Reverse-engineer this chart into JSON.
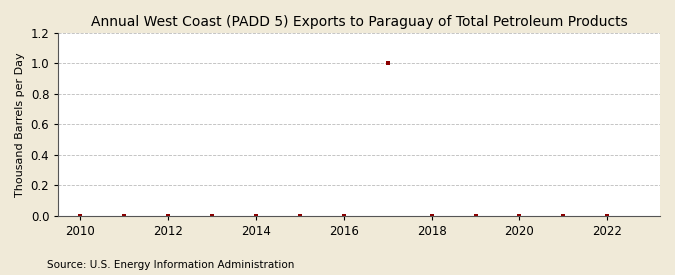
{
  "title": "Annual West Coast (PADD 5) Exports to Paraguay of Total Petroleum Products",
  "ylabel": "Thousand Barrels per Day",
  "source": "Source: U.S. Energy Information Administration",
  "figure_bg_color": "#f0ead8",
  "plot_bg_color": "#ffffff",
  "xlim": [
    2009.5,
    2023.2
  ],
  "ylim": [
    0.0,
    1.2
  ],
  "xticks": [
    2010,
    2012,
    2014,
    2016,
    2018,
    2020,
    2022
  ],
  "yticks": [
    0.0,
    0.2,
    0.4,
    0.6,
    0.8,
    1.0,
    1.2
  ],
  "x_data": [
    2010,
    2011,
    2012,
    2013,
    2014,
    2015,
    2016,
    2017,
    2018,
    2019,
    2020,
    2021,
    2022
  ],
  "y_data": [
    0.0,
    0.0,
    0.0,
    0.0,
    0.0,
    0.0,
    0.0,
    1.0,
    0.0,
    0.0,
    0.0,
    0.0,
    0.0
  ],
  "marker_color": "#8b0000",
  "marker_style": "s",
  "marker_size": 3.5,
  "grid_color": "#bbbbbb",
  "grid_linestyle": "--",
  "grid_linewidth": 0.6,
  "title_fontsize": 10,
  "axis_label_fontsize": 8,
  "tick_fontsize": 8.5,
  "source_fontsize": 7.5
}
